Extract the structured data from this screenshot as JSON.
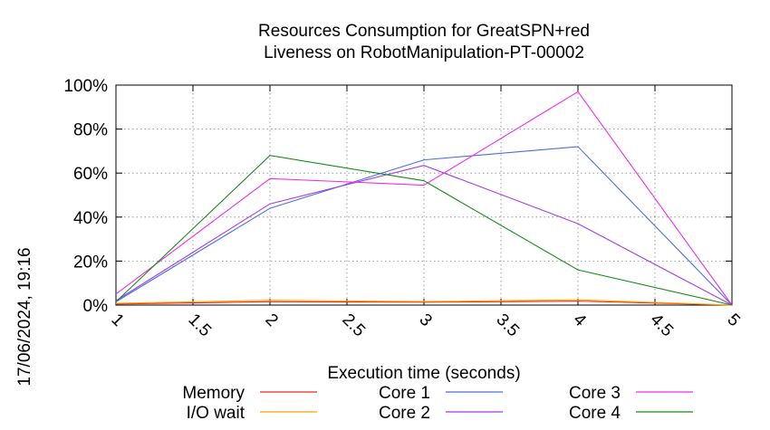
{
  "chart_data": {
    "type": "line",
    "title_lines": [
      "Resources Consumption for GreatSPN+red",
      "Liveness on RobotManipulation-PT-00002"
    ],
    "xlabel": "Execution time (seconds)",
    "ylabel": "",
    "timestamp": "17/06/2024, 19:16",
    "xlim": [
      1,
      5
    ],
    "ylim": [
      0,
      100
    ],
    "xticks": [
      "1",
      "1.5",
      "2",
      "2.5",
      "3",
      "3.5",
      "4",
      "4.5",
      "5"
    ],
    "yticks": [
      "0%",
      "20%",
      "40%",
      "60%",
      "80%",
      "100%"
    ],
    "grid": true,
    "legend_position": "bottom",
    "x": [
      1,
      2,
      3,
      4,
      5
    ],
    "series": [
      {
        "name": "Memory",
        "color": "#e8291c",
        "values": [
          0.5,
          1.5,
          1.3,
          1.8,
          0
        ]
      },
      {
        "name": "I/O wait",
        "color": "#ffa500",
        "values": [
          0.8,
          2.2,
          1.6,
          2.4,
          0
        ]
      },
      {
        "name": "Core 1",
        "color": "#4a6fe3",
        "values": [
          1.5,
          44,
          66,
          72,
          0
        ]
      },
      {
        "name": "Core 2",
        "color": "#a23be8",
        "values": [
          2,
          46,
          63.5,
          37,
          0
        ]
      },
      {
        "name": "Core 3",
        "color": "#f02cf0",
        "values": [
          5,
          57.5,
          54.5,
          97,
          0
        ]
      },
      {
        "name": "Core 4",
        "color": "#1a8a1a",
        "values": [
          1.5,
          68,
          56.5,
          16,
          0
        ]
      }
    ]
  }
}
